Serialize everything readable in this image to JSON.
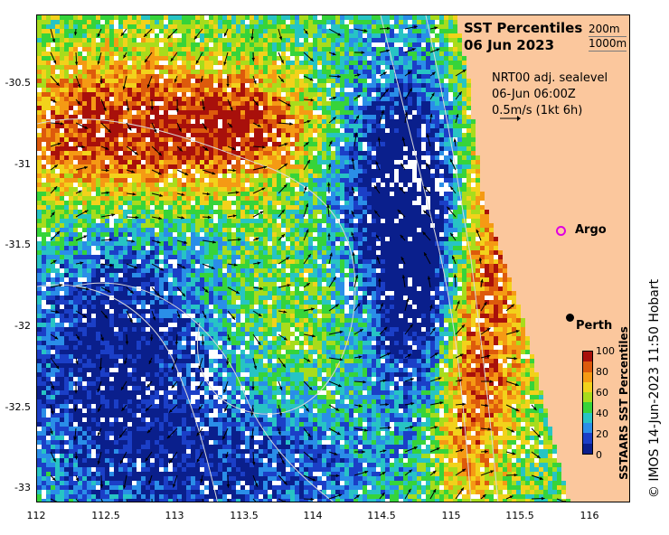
{
  "map": {
    "title": "SST Percentiles",
    "date": "06 Jun 2023",
    "contour_legend": [
      "200m",
      "1000m"
    ],
    "info_lines": [
      "NRT00 adj. sealevel",
      "06-Jun 06:00Z",
      "0.5m/s (1kt 6h)"
    ],
    "lat_labels": [
      "-30.5",
      "-31",
      "-31.5",
      "-32",
      "-32.5",
      "-33"
    ],
    "lon_labels": [
      "112",
      "112.5",
      "113",
      "113.5",
      "114",
      "114.5",
      "115",
      "115.5",
      "116"
    ],
    "places": {
      "argo": "Argo",
      "perth": "Perth"
    },
    "credit": "© IMOS 14-Jun-2023 11:50 Hobart",
    "colors": {
      "land": "#fbc79d",
      "nodata": "#ffffff",
      "vector": "#000000",
      "contour": "#d9d9d9",
      "argo": "#e000e0"
    }
  },
  "colorbar": {
    "label": "SSTAARS SST Percentiles",
    "ticks": [
      "100",
      "80",
      "60",
      "40",
      "20",
      "0"
    ],
    "colors": [
      "#0a1f8c",
      "#1b3fc7",
      "#2a8ee8",
      "#27c4c4",
      "#36d43a",
      "#a8dc1c",
      "#f2d21b",
      "#f59a14",
      "#dd5a0c",
      "#a8100b"
    ]
  }
}
